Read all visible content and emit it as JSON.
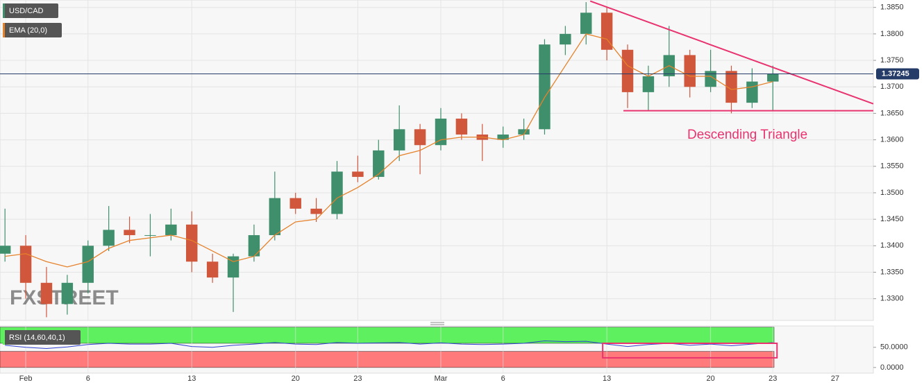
{
  "chart_data": [
    {
      "type": "candlestick",
      "series": [
        {
          "name": "USD/CAD",
          "up_color": "#3f8f6c",
          "down_color": "#d0563c",
          "x": [
            -1,
            0,
            1,
            2,
            3,
            4,
            5,
            6,
            7,
            8,
            9,
            10,
            11,
            12,
            13,
            14,
            15,
            16,
            17,
            18,
            19,
            20,
            21,
            22,
            23,
            24,
            25,
            26,
            27,
            28,
            29,
            30,
            31,
            32,
            33,
            34,
            35,
            36
          ],
          "open": [
            1.3385,
            1.34,
            1.333,
            1.329,
            1.333,
            1.34,
            1.343,
            1.342,
            1.342,
            1.344,
            1.337,
            1.334,
            1.338,
            1.342,
            1.349,
            1.347,
            1.346,
            1.354,
            1.353,
            1.358,
            1.362,
            1.359,
            1.364,
            1.361,
            1.36,
            1.361,
            1.362,
            1.378,
            1.38,
            1.384,
            1.377,
            1.369,
            1.372,
            1.376,
            1.37,
            1.373,
            1.367,
            1.371
          ],
          "high": [
            1.347,
            1.342,
            1.336,
            1.3345,
            1.341,
            1.3475,
            1.3455,
            1.346,
            1.347,
            1.3465,
            1.3385,
            1.3385,
            1.344,
            1.354,
            1.35,
            1.349,
            1.356,
            1.357,
            1.36,
            1.3665,
            1.363,
            1.366,
            1.365,
            1.363,
            1.3625,
            1.364,
            1.379,
            1.3815,
            1.386,
            1.385,
            1.378,
            1.374,
            1.3815,
            1.377,
            1.377,
            1.374,
            1.3735,
            1.374
          ],
          "low": [
            1.337,
            1.33,
            1.3265,
            1.327,
            1.331,
            1.339,
            1.3405,
            1.338,
            1.341,
            1.335,
            1.333,
            1.3275,
            1.337,
            1.341,
            1.346,
            1.3445,
            1.345,
            1.352,
            1.3525,
            1.356,
            1.3535,
            1.358,
            1.36,
            1.356,
            1.3585,
            1.36,
            1.361,
            1.376,
            1.378,
            1.375,
            1.366,
            1.3655,
            1.37,
            1.368,
            1.369,
            1.365,
            1.366,
            1.3655
          ],
          "close": [
            1.34,
            1.333,
            1.329,
            1.333,
            1.34,
            1.343,
            1.342,
            1.342,
            1.344,
            1.337,
            1.334,
            1.338,
            1.342,
            1.349,
            1.347,
            1.346,
            1.354,
            1.353,
            1.358,
            1.362,
            1.359,
            1.364,
            1.361,
            1.36,
            1.361,
            1.362,
            1.378,
            1.38,
            1.384,
            1.377,
            1.369,
            1.372,
            1.376,
            1.37,
            1.373,
            1.367,
            1.371,
            1.37245
          ]
        },
        {
          "name": "EMA (20,0)",
          "color": "#e5822b",
          "values": [
            1.338,
            1.3385,
            1.337,
            1.336,
            1.337,
            1.3395,
            1.341,
            1.3415,
            1.342,
            1.341,
            1.339,
            1.337,
            1.338,
            1.342,
            1.3445,
            1.345,
            1.349,
            1.351,
            1.3535,
            1.357,
            1.358,
            1.36,
            1.3605,
            1.3605,
            1.36,
            1.361,
            1.368,
            1.374,
            1.38,
            1.379,
            1.374,
            1.372,
            1.374,
            1.372,
            1.372,
            1.3695,
            1.37,
            1.371
          ]
        }
      ],
      "last_price": 1.37245,
      "last_price_color": "#253c69",
      "trendlines": [
        {
          "x": [
            27.2,
            40.84
          ],
          "y": [
            1.3862,
            1.3668
          ],
          "color": "#e8336f"
        },
        {
          "x": [
            28.8,
            40.84
          ],
          "y": [
            1.3655,
            1.3655
          ],
          "color": "#e8336f"
        }
      ],
      "annotation": "Descending Triangle",
      "annotation_color": "#e8336f",
      "watermark": "FXSTREET",
      "xlim": [
        -1.24,
        40.84
      ],
      "ylim": [
        1.3259,
        1.3864
      ],
      "grid": true,
      "xticks": [
        {
          "value": 0,
          "label": "Feb"
        },
        {
          "value": 3,
          "label": "6"
        },
        {
          "value": 8,
          "label": "13"
        },
        {
          "value": 13,
          "label": "20"
        },
        {
          "value": 16,
          "label": "23"
        },
        {
          "value": 20,
          "label": "Mar"
        },
        {
          "value": 23,
          "label": "6"
        },
        {
          "value": 28,
          "label": "13"
        },
        {
          "value": 33,
          "label": "20"
        },
        {
          "value": 36,
          "label": "23"
        },
        {
          "value": 39,
          "label": "27"
        }
      ],
      "yticks": [
        {
          "value": 1.33,
          "label": "1.3300"
        },
        {
          "value": 1.335,
          "label": "1.3350"
        },
        {
          "value": 1.34,
          "label": "1.3400"
        },
        {
          "value": 1.345,
          "label": "1.3450"
        },
        {
          "value": 1.35,
          "label": "1.3500"
        },
        {
          "value": 1.355,
          "label": "1.3550"
        },
        {
          "value": 1.36,
          "label": "1.3600"
        },
        {
          "value": 1.365,
          "label": "1.3650"
        },
        {
          "value": 1.37,
          "label": "1.3700"
        },
        {
          "value": 1.375,
          "label": "1.3750"
        },
        {
          "value": 1.38,
          "label": "1.3800"
        },
        {
          "value": 1.385,
          "label": "1.3850"
        }
      ]
    },
    {
      "type": "line",
      "title": "RSI (14,60,40,1)",
      "series": [
        {
          "name": "RSI",
          "color": "#2f3fd0",
          "values": [
            55,
            50,
            47,
            51,
            57,
            60,
            58,
            58,
            60,
            52,
            50,
            55,
            58,
            62,
            58,
            57,
            62,
            60,
            61,
            62,
            58,
            61,
            58,
            57,
            58,
            60,
            66,
            64,
            65,
            58,
            52,
            57,
            60,
            55,
            58,
            54,
            58,
            62
          ]
        }
      ],
      "bands": [
        {
          "y": [
            60,
            100
          ],
          "color": "#5ef05e"
        },
        {
          "y": [
            0,
            40
          ],
          "color": "#ff7b7b"
        }
      ],
      "box": {
        "x": [
          27.8,
          36.2
        ],
        "y": [
          24,
          60
        ],
        "color": "#e8336f"
      },
      "ylim": [
        -14,
        103
      ],
      "yticks": [
        {
          "value": 50,
          "label": "50.0000"
        },
        {
          "value": 0,
          "label": "0.0000"
        }
      ]
    }
  ]
}
